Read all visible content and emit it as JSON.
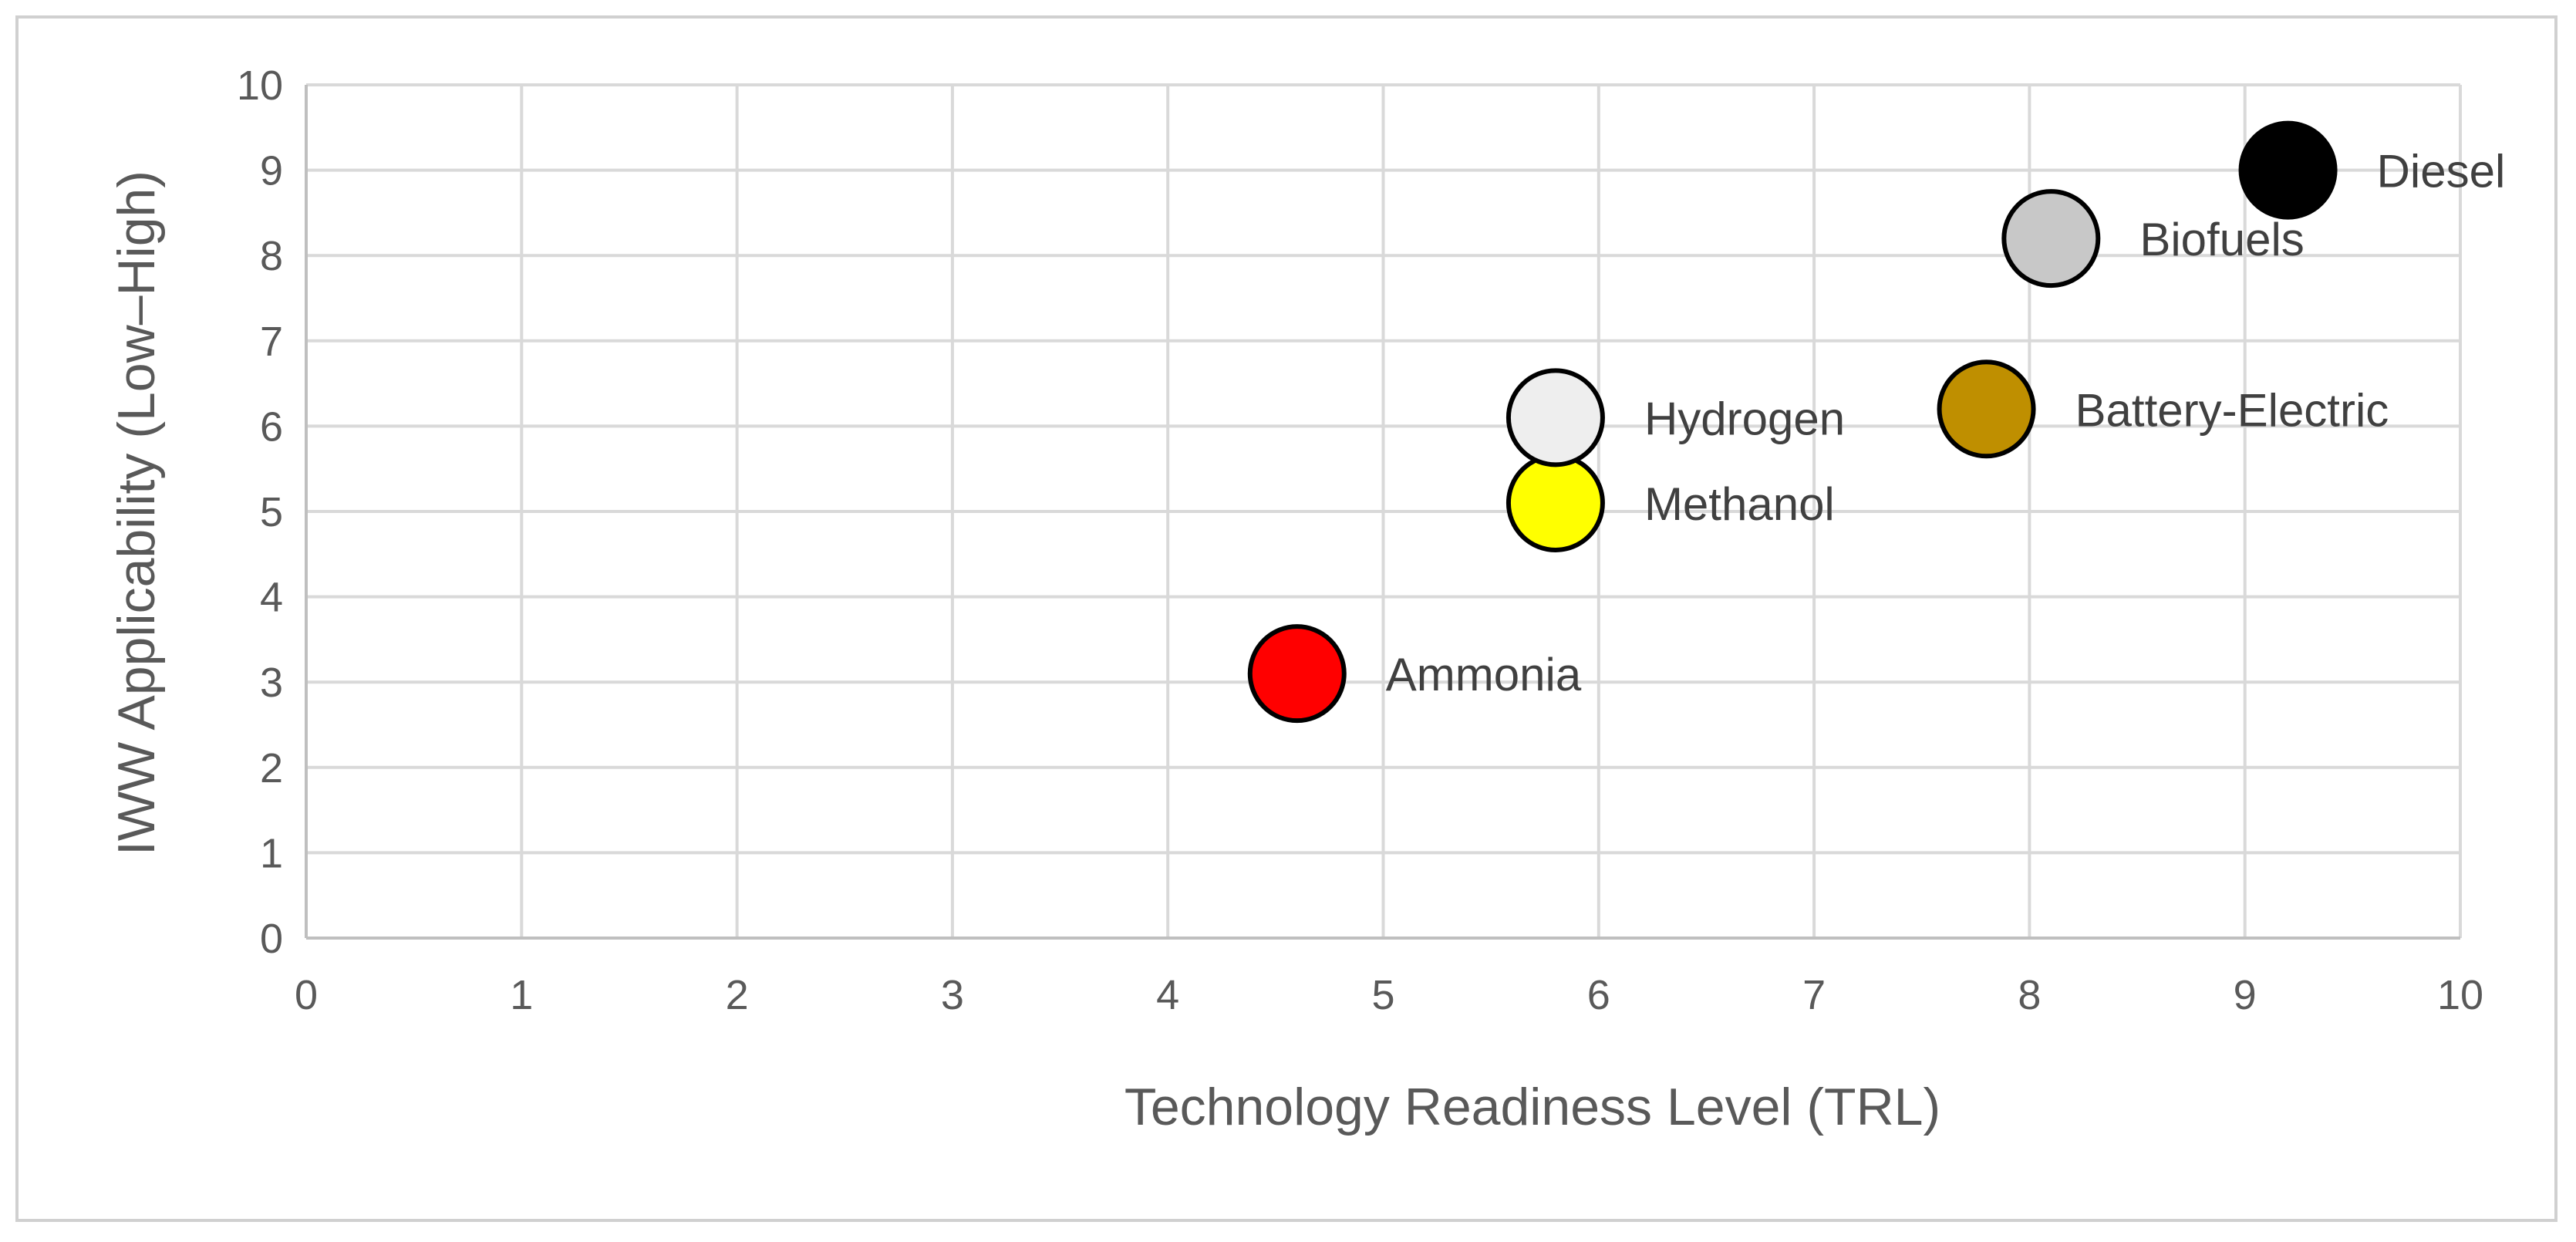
{
  "chart_data": {
    "type": "scatter",
    "title": "",
    "xlabel": "Technology Readiness Level (TRL)",
    "ylabel": "IWW Applicability (Low–High)",
    "xlim": [
      0,
      10
    ],
    "ylim": [
      0,
      10
    ],
    "xticks": [
      "0",
      "1",
      "2",
      "3",
      "4",
      "5",
      "6",
      "7",
      "8",
      "9",
      "10"
    ],
    "yticks": [
      "0",
      "1",
      "2",
      "3",
      "4",
      "5",
      "6",
      "7",
      "8",
      "9",
      "10"
    ],
    "grid": true,
    "legend": "none",
    "points": [
      {
        "label": "Ammonia",
        "x": 4.6,
        "y": 3.1,
        "color": "#ff0000"
      },
      {
        "label": "Methanol",
        "x": 5.8,
        "y": 5.1,
        "color": "#ffff00"
      },
      {
        "label": "Hydrogen",
        "x": 5.8,
        "y": 6.1,
        "color": "#eeeeee"
      },
      {
        "label": "Battery-Electric",
        "x": 7.8,
        "y": 6.2,
        "color": "#bf8f00"
      },
      {
        "label": "Biofuels",
        "x": 8.1,
        "y": 8.2,
        "color": "#c8c8c8"
      },
      {
        "label": "Diesel",
        "x": 9.2,
        "y": 9.0,
        "color": "#000000"
      }
    ]
  }
}
